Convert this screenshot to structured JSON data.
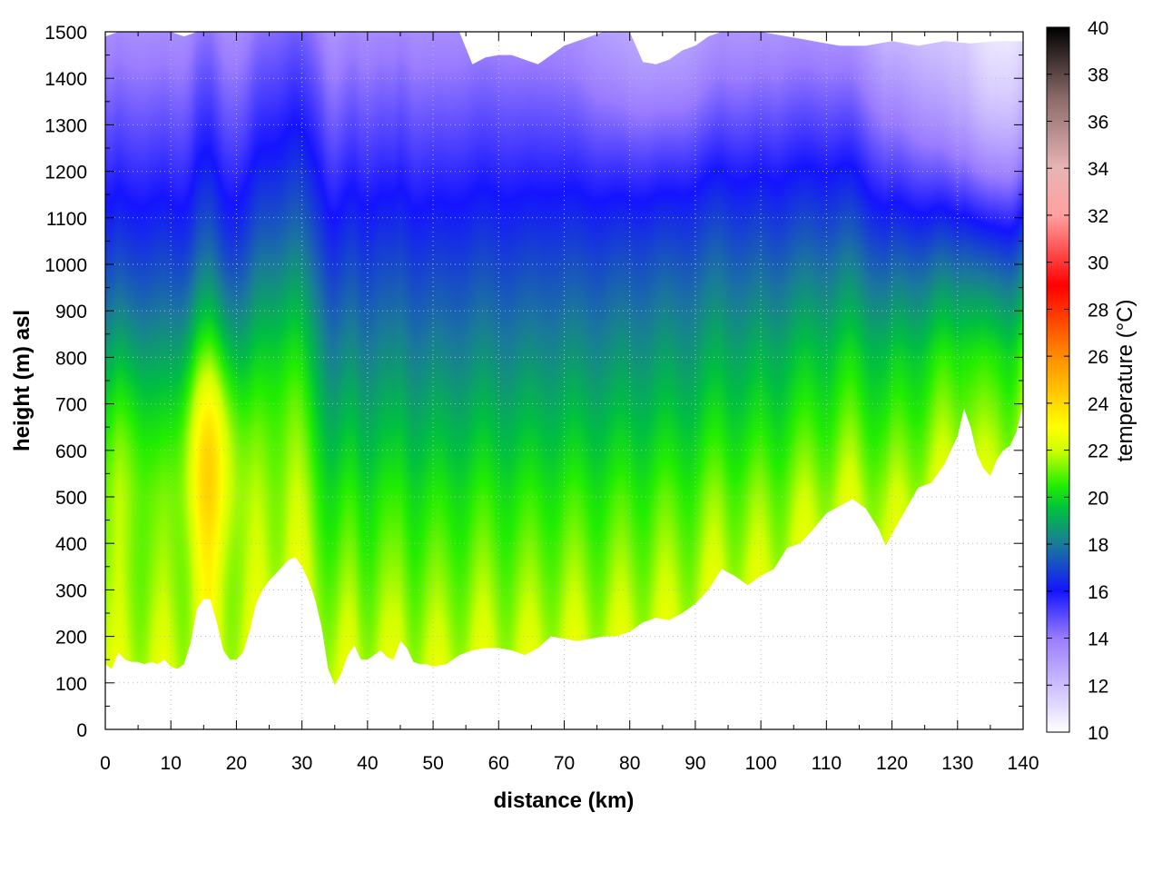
{
  "chart_data": {
    "type": "heatmap",
    "subtype": "vertical cross-section (filled contour)",
    "xlabel": "distance (km)",
    "ylabel": "height (m) asl",
    "colorbar_label": "temperature (°C)",
    "xlim": [
      0,
      140
    ],
    "ylim": [
      0,
      1500
    ],
    "clim": [
      10,
      40
    ],
    "x_ticks": [
      "0",
      "10",
      "20",
      "30",
      "40",
      "50",
      "60",
      "70",
      "80",
      "90",
      "100",
      "110",
      "120",
      "130",
      "140"
    ],
    "y_ticks": [
      "0",
      "100",
      "200",
      "300",
      "400",
      "500",
      "600",
      "700",
      "800",
      "900",
      "1000",
      "1100",
      "1200",
      "1300",
      "1400",
      "1500"
    ],
    "colorbar_ticks": [
      "10",
      "12",
      "14",
      "16",
      "18",
      "20",
      "22",
      "24",
      "26",
      "28",
      "30",
      "32",
      "34",
      "36",
      "38",
      "40"
    ],
    "grid": true,
    "colormap": [
      {
        "t": 10,
        "color": "#ffffff"
      },
      {
        "t": 14,
        "color": "#9a7cff"
      },
      {
        "t": 16,
        "color": "#1414ff"
      },
      {
        "t": 18,
        "color": "#1a7a9a"
      },
      {
        "t": 19.5,
        "color": "#00c040"
      },
      {
        "t": 20.5,
        "color": "#22ee00"
      },
      {
        "t": 22,
        "color": "#d0ff00"
      },
      {
        "t": 23,
        "color": "#ffff00"
      },
      {
        "t": 26,
        "color": "#ff8c00"
      },
      {
        "t": 29,
        "color": "#ff0000"
      },
      {
        "t": 32,
        "color": "#ffa0a0"
      },
      {
        "t": 34,
        "color": "#e8b4b4"
      },
      {
        "t": 37,
        "color": "#8a6a6a"
      },
      {
        "t": 40,
        "color": "#000000"
      }
    ],
    "terrain_height": {
      "x": [
        0,
        1,
        2,
        3,
        4,
        5,
        6,
        7,
        8,
        9,
        10,
        11,
        12,
        13,
        14,
        15,
        16,
        17,
        18,
        19,
        20,
        21,
        22,
        23,
        24,
        25,
        26,
        27,
        28,
        29,
        30,
        31,
        32,
        33,
        34,
        35,
        36,
        37,
        38,
        39,
        40,
        41,
        42,
        43,
        44,
        45,
        46,
        47,
        48,
        49,
        50,
        52,
        54,
        56,
        58,
        60,
        62,
        64,
        66,
        68,
        70,
        72,
        74,
        76,
        78,
        80,
        82,
        84,
        86,
        88,
        90,
        92,
        94,
        96,
        98,
        100,
        102,
        104,
        106,
        108,
        110,
        112,
        114,
        116,
        118,
        119,
        120,
        122,
        124,
        126,
        128,
        130,
        131,
        132,
        133,
        134,
        135,
        136,
        137,
        138,
        139,
        140
      ],
      "y": [
        140,
        130,
        165,
        150,
        145,
        145,
        140,
        145,
        140,
        150,
        135,
        130,
        140,
        185,
        260,
        280,
        280,
        230,
        170,
        150,
        150,
        165,
        210,
        270,
        300,
        320,
        335,
        350,
        365,
        370,
        350,
        320,
        280,
        220,
        130,
        95,
        120,
        160,
        180,
        150,
        150,
        160,
        170,
        155,
        150,
        190,
        175,
        145,
        140,
        140,
        135,
        140,
        160,
        170,
        175,
        175,
        170,
        160,
        175,
        200,
        195,
        190,
        195,
        200,
        200,
        210,
        230,
        240,
        235,
        250,
        270,
        300,
        345,
        330,
        310,
        330,
        345,
        390,
        400,
        430,
        465,
        480,
        495,
        475,
        430,
        395,
        420,
        470,
        520,
        530,
        570,
        630,
        690,
        650,
        590,
        560,
        545,
        580,
        600,
        610,
        640,
        700
      ]
    },
    "data_top": {
      "x": [
        0,
        2,
        4,
        6,
        8,
        10,
        12,
        14,
        16,
        18,
        20,
        22,
        24,
        26,
        28,
        30,
        32,
        34,
        36,
        38,
        40,
        42,
        44,
        46,
        48,
        50,
        52,
        54,
        56,
        58,
        60,
        62,
        64,
        66,
        68,
        70,
        72,
        74,
        76,
        78,
        80,
        82,
        84,
        86,
        88,
        90,
        92,
        94,
        96,
        98,
        100,
        104,
        108,
        112,
        116,
        120,
        124,
        128,
        132,
        136,
        140
      ],
      "y": [
        1490,
        1500,
        1500,
        1500,
        1500,
        1500,
        1490,
        1500,
        1500,
        1500,
        1500,
        1500,
        1500,
        1500,
        1500,
        1500,
        1500,
        1500,
        1500,
        1500,
        1500,
        1500,
        1500,
        1500,
        1500,
        1500,
        1500,
        1500,
        1430,
        1445,
        1450,
        1450,
        1440,
        1430,
        1450,
        1470,
        1480,
        1490,
        1500,
        1500,
        1500,
        1435,
        1430,
        1440,
        1460,
        1470,
        1490,
        1500,
        1500,
        1500,
        1500,
        1490,
        1480,
        1470,
        1470,
        1480,
        1470,
        1480,
        1475,
        1480,
        1480
      ]
    },
    "warm_cores": [
      {
        "x": 16,
        "height": 620,
        "temperature": 25
      },
      {
        "x": 3,
        "height": 620,
        "temperature": 23
      },
      {
        "x": 27,
        "height": 750,
        "temperature": 22.5
      },
      {
        "x": 50,
        "height": 420,
        "temperature": 21.5
      }
    ],
    "cool_regions": [
      {
        "x": 135,
        "height": 1300,
        "temperature": 15.5
      },
      {
        "x": 85,
        "height": 1450,
        "temperature": 16.5
      }
    ]
  }
}
